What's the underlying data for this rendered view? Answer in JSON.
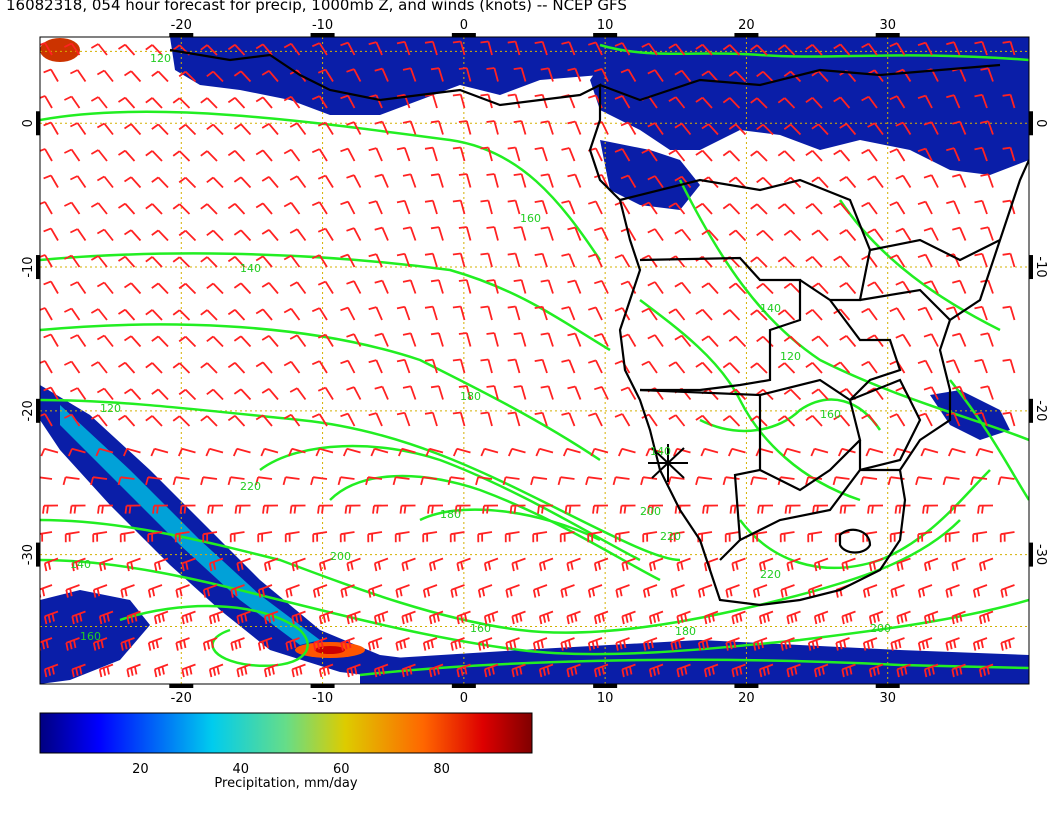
{
  "title": "16082318, 054 hour forecast for precip, 1000mb Z, and winds (knots) -- NCEP GFS",
  "map": {
    "lon_range": [
      -30,
      40
    ],
    "lat_range": [
      -39,
      6
    ],
    "lon_ticks": [
      "-20",
      "-10",
      "0",
      "10",
      "20",
      "30"
    ],
    "lat_ticks": [
      "0",
      "-10",
      "-20",
      "-30"
    ],
    "grid_style": "dotted",
    "colors": {
      "grid": "#d4b000",
      "contour": "#22ee22",
      "barb": "#ff2222",
      "coast": "#000000",
      "precip_low": "#000080",
      "precip_high": "#800000"
    },
    "contour_labels": [
      "120",
      "140",
      "160",
      "180",
      "200",
      "220",
      "120",
      "140",
      "160",
      "180",
      "200",
      "220",
      "140",
      "160",
      "180",
      "200",
      "220",
      "120",
      "140",
      "160"
    ]
  },
  "colorbar": {
    "ticks": [
      "20",
      "40",
      "60",
      "80"
    ],
    "range": [
      0,
      98
    ],
    "label": "Precipitation, mm/day"
  }
}
